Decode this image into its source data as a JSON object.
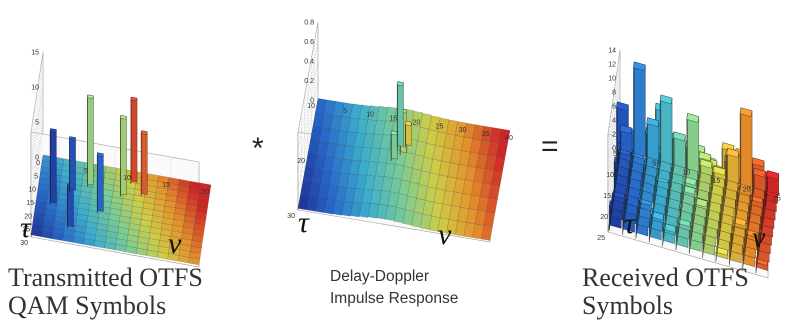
{
  "panels": [
    {
      "id": "transmitted",
      "caption_line1": "Transmitted OTFS",
      "caption_line2": "QAM Symbols",
      "tau_symbol": "τ",
      "nu_symbol": "ν",
      "z_ticks": [
        "0",
        "5",
        "10",
        "15"
      ],
      "tau_ticks": [
        "0",
        "5",
        "10",
        "15",
        "20",
        "25",
        "30"
      ],
      "nu_ticks": [
        "5",
        "10",
        "15",
        "20"
      ]
    },
    {
      "id": "channel",
      "caption_line1": "Delay-Doppler",
      "caption_line2": "Impulse Response",
      "tau_symbol": "τ",
      "nu_symbol": "ν",
      "z_ticks": [
        "0",
        "0.2",
        "0.4",
        "0.6",
        "0.8"
      ],
      "tau_ticks": [
        "10",
        "20",
        "30"
      ],
      "nu_ticks": [
        "5",
        "10",
        "15",
        "20",
        "25",
        "30",
        "35",
        "40"
      ]
    },
    {
      "id": "received",
      "caption_line1": "Received OTFS",
      "caption_line2": "Symbols",
      "tau_symbol": "τ",
      "nu_symbol": "ν",
      "z_ticks": [
        "0",
        "2",
        "4",
        "6",
        "8",
        "10",
        "12",
        "14"
      ],
      "tau_ticks": [
        "5",
        "10",
        "15",
        "20",
        "25"
      ],
      "nu_ticks": [
        "5",
        "10",
        "15",
        "20",
        "25"
      ]
    }
  ],
  "operators": {
    "convolution": "*",
    "equals": "="
  },
  "colormap": [
    "#1f2f9c",
    "#2a6fd6",
    "#3fb6d8",
    "#7ed6a0",
    "#d8d84a",
    "#f09a2e",
    "#d8282a"
  ]
}
